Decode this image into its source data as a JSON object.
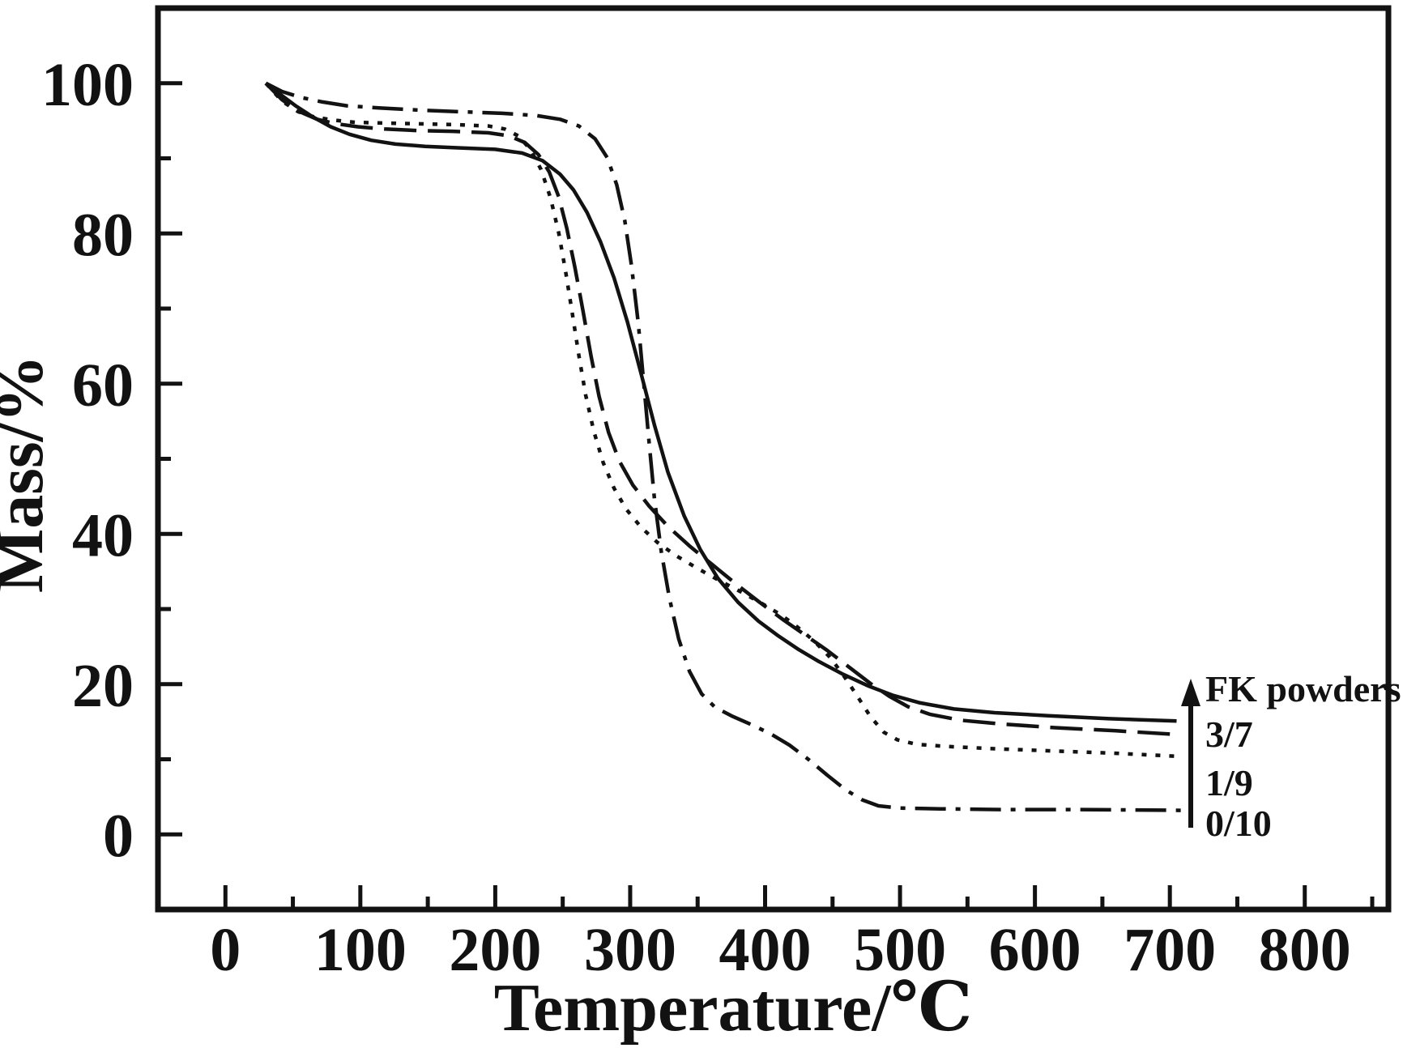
{
  "figure": {
    "background_color": "#ffffff",
    "line_color": "#121212"
  },
  "chart_data": {
    "type": "line",
    "title": "",
    "xlabel": "Temperature/℃",
    "ylabel": "Mass/%",
    "xlim": [
      -50,
      862
    ],
    "ylim": [
      -10,
      110
    ],
    "grid": false,
    "x_ticks": {
      "major": [
        0,
        100,
        200,
        300,
        400,
        500,
        600,
        700,
        800
      ],
      "labels": [
        "0",
        "100",
        "200",
        "300",
        "400",
        "500",
        "600",
        "700",
        "800"
      ],
      "minor": [
        50,
        150,
        250,
        350,
        450,
        550,
        650,
        750,
        850
      ]
    },
    "y_ticks": {
      "major": [
        0,
        20,
        40,
        60,
        80,
        100
      ],
      "labels": [
        "0",
        "20",
        "40",
        "60",
        "80",
        "100"
      ],
      "minor": [
        10,
        30,
        50,
        70,
        90
      ]
    },
    "legend": {
      "position": "lower right",
      "title": "FK powders",
      "items": [
        "3/7",
        "1/9",
        "0/10"
      ],
      "arrow_direction": "up"
    },
    "series": [
      {
        "name": "FK powders",
        "line_style": "solid",
        "final_residue_pct": 15.1,
        "points": [
          [
            30,
            100
          ],
          [
            40,
            98.6
          ],
          [
            52,
            97
          ],
          [
            64,
            95.6
          ],
          [
            78,
            94.2
          ],
          [
            92,
            93.2
          ],
          [
            108,
            92.4
          ],
          [
            126,
            91.9
          ],
          [
            148,
            91.6
          ],
          [
            172,
            91.4
          ],
          [
            200,
            91.2
          ],
          [
            220,
            90.7
          ],
          [
            235,
            89.7
          ],
          [
            248,
            87.9
          ],
          [
            258,
            85.8
          ],
          [
            268,
            82.8
          ],
          [
            278,
            78.9
          ],
          [
            288,
            74.1
          ],
          [
            298,
            68.2
          ],
          [
            308,
            61.4
          ],
          [
            318,
            54.5
          ],
          [
            328,
            48.2
          ],
          [
            340,
            42.4
          ],
          [
            352,
            37.9
          ],
          [
            365,
            34.1
          ],
          [
            380,
            30.9
          ],
          [
            395,
            28.4
          ],
          [
            410,
            26.4
          ],
          [
            425,
            24.6
          ],
          [
            440,
            23
          ],
          [
            458,
            21.3
          ],
          [
            476,
            19.8
          ],
          [
            495,
            18.5
          ],
          [
            515,
            17.5
          ],
          [
            540,
            16.7
          ],
          [
            570,
            16.2
          ],
          [
            610,
            15.8
          ],
          [
            655,
            15.4
          ],
          [
            705,
            15.1
          ]
        ]
      },
      {
        "name": "3/7",
        "line_style": "dashed",
        "final_residue_pct": 13.3,
        "points": [
          [
            30,
            100
          ],
          [
            42,
            97.8
          ],
          [
            54,
            96.3
          ],
          [
            68,
            95.2
          ],
          [
            82,
            94.6
          ],
          [
            98,
            94.2
          ],
          [
            118,
            93.9
          ],
          [
            142,
            93.7
          ],
          [
            168,
            93.6
          ],
          [
            195,
            93.4
          ],
          [
            210,
            93
          ],
          [
            222,
            92.1
          ],
          [
            232,
            90.5
          ],
          [
            240,
            88.2
          ],
          [
            247,
            84.9
          ],
          [
            253,
            80.7
          ],
          [
            259,
            75.5
          ],
          [
            265,
            69.7
          ],
          [
            271,
            63.7
          ],
          [
            277,
            58.3
          ],
          [
            284,
            53.5
          ],
          [
            292,
            49.7
          ],
          [
            302,
            46.5
          ],
          [
            314,
            43.7
          ],
          [
            328,
            41
          ],
          [
            344,
            38.4
          ],
          [
            361,
            35.9
          ],
          [
            378,
            33.4
          ],
          [
            396,
            30.9
          ],
          [
            414,
            28.5
          ],
          [
            430,
            26.5
          ],
          [
            446,
            24.5
          ],
          [
            462,
            22.3
          ],
          [
            478,
            20.1
          ],
          [
            492,
            18.4
          ],
          [
            506,
            17
          ],
          [
            522,
            16
          ],
          [
            545,
            15.2
          ],
          [
            575,
            14.7
          ],
          [
            615,
            14.2
          ],
          [
            660,
            13.8
          ],
          [
            705,
            13.3
          ]
        ]
      },
      {
        "name": "1/9",
        "line_style": "dotted",
        "final_residue_pct": 10.4,
        "points": [
          [
            30,
            100
          ],
          [
            42,
            97.6
          ],
          [
            54,
            96.2
          ],
          [
            66,
            95.5
          ],
          [
            80,
            95.1
          ],
          [
            96,
            94.8
          ],
          [
            116,
            94.7
          ],
          [
            142,
            94.6
          ],
          [
            170,
            94.5
          ],
          [
            195,
            94.3
          ],
          [
            207,
            93.9
          ],
          [
            217,
            93
          ],
          [
            226,
            91.2
          ],
          [
            234,
            88.5
          ],
          [
            241,
            84.7
          ],
          [
            247,
            80.1
          ],
          [
            252,
            75.1
          ],
          [
            257,
            69.5
          ],
          [
            262,
            63.7
          ],
          [
            267,
            58.5
          ],
          [
            273,
            53.7
          ],
          [
            280,
            49.5
          ],
          [
            288,
            46.1
          ],
          [
            297,
            43.3
          ],
          [
            308,
            40.9
          ],
          [
            320,
            38.9
          ],
          [
            334,
            37.1
          ],
          [
            350,
            35.4
          ],
          [
            366,
            33.8
          ],
          [
            382,
            32.3
          ],
          [
            398,
            30.7
          ],
          [
            412,
            29.2
          ],
          [
            424,
            27.6
          ],
          [
            436,
            25.8
          ],
          [
            448,
            23.6
          ],
          [
            458,
            21.2
          ],
          [
            468,
            18.5
          ],
          [
            478,
            15.7
          ],
          [
            488,
            13.6
          ],
          [
            498,
            12.6
          ],
          [
            512,
            12
          ],
          [
            535,
            11.7
          ],
          [
            570,
            11.4
          ],
          [
            615,
            11.1
          ],
          [
            660,
            10.8
          ],
          [
            705,
            10.4
          ]
        ]
      },
      {
        "name": "0/10",
        "line_style": "dashdot",
        "final_residue_pct": 3.2,
        "points": [
          [
            30,
            100
          ],
          [
            42,
            98.9
          ],
          [
            56,
            98.1
          ],
          [
            72,
            97.5
          ],
          [
            90,
            97
          ],
          [
            115,
            96.7
          ],
          [
            145,
            96.4
          ],
          [
            175,
            96.2
          ],
          [
            205,
            96
          ],
          [
            230,
            95.7
          ],
          [
            248,
            95.2
          ],
          [
            262,
            94.3
          ],
          [
            274,
            92.6
          ],
          [
            283,
            90.1
          ],
          [
            290,
            86.5
          ],
          [
            296,
            81.7
          ],
          [
            301,
            75.7
          ],
          [
            306,
            68.1
          ],
          [
            310,
            60.2
          ],
          [
            314,
            52.2
          ],
          [
            318,
            44.7
          ],
          [
            323,
            37.7
          ],
          [
            329,
            31.5
          ],
          [
            336,
            26
          ],
          [
            344,
            21.7
          ],
          [
            353,
            18.7
          ],
          [
            363,
            16.9
          ],
          [
            376,
            15.7
          ],
          [
            390,
            14.6
          ],
          [
            404,
            13.4
          ],
          [
            418,
            11.9
          ],
          [
            432,
            10
          ],
          [
            446,
            7.9
          ],
          [
            460,
            5.9
          ],
          [
            472,
            4.6
          ],
          [
            484,
            3.8
          ],
          [
            500,
            3.5
          ],
          [
            530,
            3.4
          ],
          [
            575,
            3.3
          ],
          [
            625,
            3.3
          ],
          [
            675,
            3.25
          ],
          [
            710,
            3.2
          ]
        ]
      }
    ]
  }
}
